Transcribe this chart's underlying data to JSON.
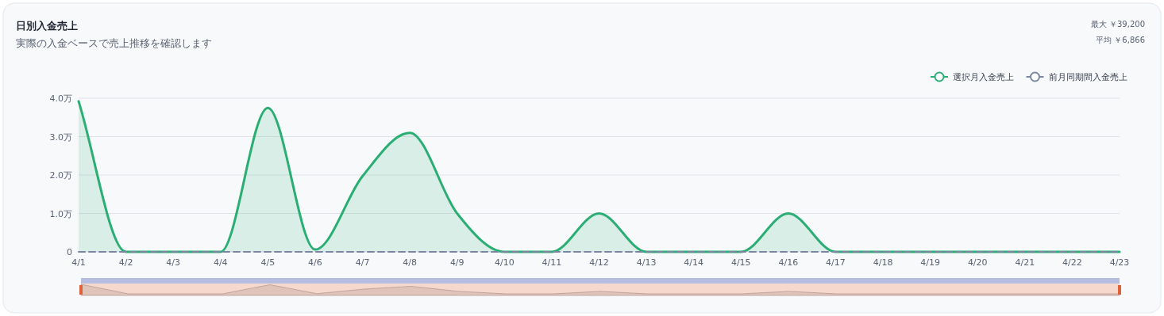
{
  "chart_data": {
    "type": "line",
    "title": "日別入金売上",
    "subtitle": "実際の入金ベースで売上推移を確認します",
    "annotations": [
      "最大 ￥39,200",
      "平均 ￥6,866"
    ],
    "categories": [
      "4/1",
      "4/2",
      "4/3",
      "4/4",
      "4/5",
      "4/6",
      "4/7",
      "4/8",
      "4/9",
      "4/10",
      "4/11",
      "4/12",
      "4/13",
      "4/14",
      "4/15",
      "4/16",
      "4/17",
      "4/18",
      "4/19",
      "4/20",
      "4/21",
      "4/22",
      "4/23"
    ],
    "series": [
      {
        "name": "選択月入金売上",
        "type": "area",
        "color": "#2aae74",
        "line_style": "solid",
        "values": [
          3.92,
          0,
          0,
          0,
          3.75,
          0.06,
          1.97,
          3.1,
          1.0,
          0,
          0,
          1.0,
          0,
          0,
          0,
          1.0,
          0,
          0,
          0,
          0,
          0,
          0,
          0
        ]
      },
      {
        "name": "前月同期間入金売上",
        "type": "line",
        "color": "#7b86a0",
        "line_style": "dashed",
        "values": [
          0,
          0,
          0,
          0,
          0,
          0,
          0,
          0,
          0,
          0,
          0,
          0,
          0,
          0,
          0,
          0,
          0,
          0,
          0,
          0,
          0,
          0,
          0
        ]
      }
    ],
    "ylim": [
      0,
      4
    ],
    "yticks": [
      0,
      {
        "value": 1,
        "label": "1.0万"
      },
      {
        "value": 2,
        "label": "2.0万"
      },
      {
        "value": 3,
        "label": "3.0万"
      },
      {
        "value": 4,
        "label": "4.0万"
      }
    ],
    "grid": "y",
    "legend": "top right"
  }
}
